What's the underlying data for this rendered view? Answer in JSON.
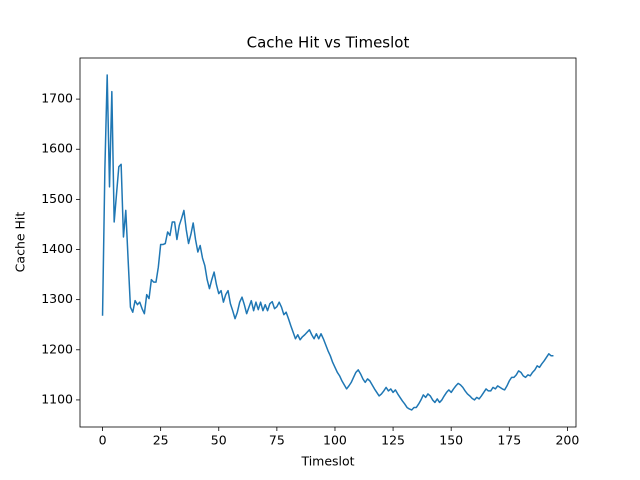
{
  "chart_data": {
    "type": "line",
    "title": "Cache Hit vs Timeslot",
    "x_label": "Timeslot",
    "y_label": "Cache Hit",
    "x": [
      0,
      1,
      2,
      3,
      4,
      5,
      6,
      7,
      8,
      9,
      10,
      11,
      12,
      13,
      14,
      15,
      16,
      17,
      18,
      19,
      20,
      21,
      22,
      23,
      24,
      25,
      26,
      27,
      28,
      29,
      30,
      31,
      32,
      33,
      34,
      35,
      36,
      37,
      38,
      39,
      40,
      41,
      42,
      43,
      44,
      45,
      46,
      47,
      48,
      49,
      50,
      51,
      52,
      53,
      54,
      55,
      56,
      57,
      58,
      59,
      60,
      61,
      62,
      63,
      64,
      65,
      66,
      67,
      68,
      69,
      70,
      71,
      72,
      73,
      74,
      75,
      76,
      77,
      78,
      79,
      80,
      81,
      82,
      83,
      84,
      85,
      86,
      87,
      88,
      89,
      90,
      91,
      92,
      93,
      94,
      95,
      96,
      97,
      98,
      99,
      100,
      101,
      102,
      103,
      104,
      105,
      106,
      107,
      108,
      109,
      110,
      111,
      112,
      113,
      114,
      115,
      116,
      117,
      118,
      119,
      120,
      121,
      122,
      123,
      124,
      125,
      126,
      127,
      128,
      129,
      130,
      131,
      132,
      133,
      134,
      135,
      136,
      137,
      138,
      139,
      140,
      141,
      142,
      143,
      144,
      145,
      146,
      147,
      148,
      149,
      150,
      151,
      152,
      153,
      154,
      155,
      156,
      157,
      158,
      159,
      160,
      161,
      162,
      163,
      164,
      165,
      166,
      167,
      168,
      169,
      170,
      171,
      172,
      173,
      174,
      175,
      176,
      177,
      178,
      179,
      180,
      181,
      182,
      183,
      184,
      185,
      186,
      187,
      188,
      189,
      190,
      191,
      192,
      193,
      194
    ],
    "series": [
      {
        "color": "#1f77b4",
        "values": [
          1268,
          1560,
          1748,
          1525,
          1715,
          1455,
          1510,
          1565,
          1570,
          1425,
          1478,
          1380,
          1285,
          1275,
          1298,
          1290,
          1295,
          1282,
          1272,
          1310,
          1302,
          1340,
          1335,
          1335,
          1365,
          1410,
          1410,
          1412,
          1435,
          1428,
          1455,
          1455,
          1420,
          1448,
          1462,
          1478,
          1440,
          1412,
          1430,
          1453,
          1420,
          1395,
          1408,
          1383,
          1368,
          1340,
          1322,
          1340,
          1355,
          1330,
          1312,
          1318,
          1295,
          1310,
          1318,
          1292,
          1278,
          1262,
          1275,
          1295,
          1305,
          1290,
          1272,
          1285,
          1298,
          1278,
          1295,
          1280,
          1295,
          1278,
          1290,
          1278,
          1292,
          1296,
          1282,
          1286,
          1295,
          1285,
          1270,
          1275,
          1262,
          1248,
          1235,
          1222,
          1230,
          1220,
          1226,
          1230,
          1235,
          1240,
          1230,
          1222,
          1232,
          1222,
          1232,
          1222,
          1210,
          1198,
          1188,
          1175,
          1165,
          1155,
          1148,
          1138,
          1130,
          1122,
          1128,
          1135,
          1145,
          1155,
          1160,
          1152,
          1142,
          1135,
          1142,
          1138,
          1130,
          1122,
          1115,
          1108,
          1112,
          1118,
          1125,
          1118,
          1122,
          1115,
          1120,
          1112,
          1105,
          1098,
          1092,
          1085,
          1082,
          1080,
          1085,
          1085,
          1092,
          1100,
          1110,
          1105,
          1112,
          1108,
          1100,
          1095,
          1102,
          1095,
          1100,
          1108,
          1115,
          1120,
          1115,
          1122,
          1128,
          1133,
          1130,
          1125,
          1118,
          1112,
          1108,
          1103,
          1100,
          1105,
          1102,
          1108,
          1115,
          1122,
          1118,
          1118,
          1125,
          1122,
          1128,
          1125,
          1122,
          1120,
          1128,
          1138,
          1145,
          1145,
          1150,
          1158,
          1155,
          1148,
          1145,
          1150,
          1148,
          1155,
          1160,
          1168,
          1165,
          1172,
          1178,
          1185,
          1192,
          1188,
          1188
        ]
      }
    ],
    "xlim": [
      -9.7,
      203.7
    ],
    "ylim": [
      1046,
      1782
    ],
    "xticks": [
      0,
      25,
      50,
      75,
      100,
      125,
      150,
      175,
      200
    ],
    "yticks": [
      1100,
      1200,
      1300,
      1400,
      1500,
      1600,
      1700
    ]
  }
}
